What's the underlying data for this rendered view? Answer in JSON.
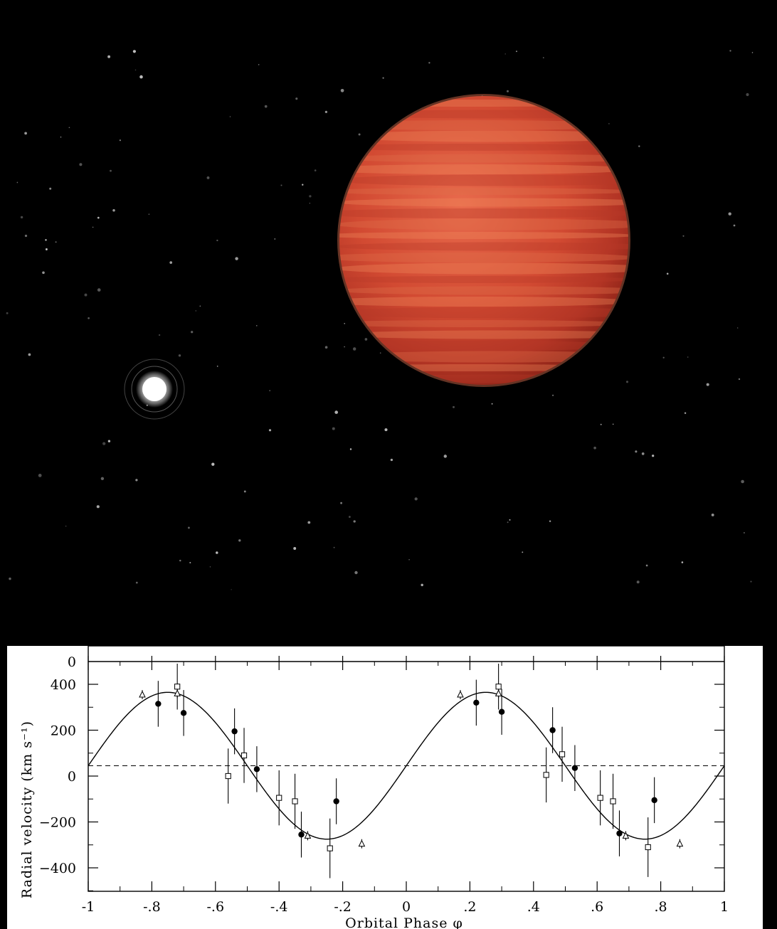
{
  "image": {
    "top_panel": "space-illustration",
    "icons": {
      "planet": "red-brown-dwarf-sphere-icon",
      "star": "white-star-icon"
    },
    "colors": {
      "background": "#000000",
      "planet": "#c8402c",
      "star": "#ffffff",
      "chart_background": "#ffffff",
      "chart_ink": "#000000"
    }
  },
  "chart_data": {
    "type": "scatter",
    "xlabel": "Orbital Phase φ",
    "ylabel": "Radial velocity (km s⁻¹)",
    "xlim": [
      -1,
      1
    ],
    "ylim": [
      -500,
      500
    ],
    "x_ticks": [
      "-1",
      "-.8",
      "-.6",
      "-.4",
      "-.2",
      "0",
      ".2",
      ".4",
      ".6",
      ".8",
      "1"
    ],
    "x_tick_values": [
      -1,
      -0.8,
      -0.6,
      -0.4,
      -0.2,
      0,
      0.2,
      0.4,
      0.6,
      0.8,
      1
    ],
    "y_ticks": [
      "−400",
      "−200",
      "0",
      "200",
      "400"
    ],
    "y_tick_values": [
      -400,
      -200,
      0,
      200,
      400
    ],
    "top_panel_tick": "0",
    "systemic_velocity": 45,
    "fit": {
      "gamma": 45,
      "K": 320,
      "form": "gamma + K*sin(2*pi*phase)"
    },
    "series": [
      {
        "marker": "filled-circle",
        "x": [
          -0.78,
          -0.7,
          -0.54,
          -0.47,
          -0.33,
          -0.22,
          0.22,
          0.3,
          0.46,
          0.53,
          0.67,
          0.78
        ],
        "y": [
          315,
          275,
          195,
          30,
          -255,
          -110,
          320,
          280,
          200,
          35,
          -250,
          -105
        ],
        "yerr": [
          100,
          100,
          100,
          100,
          100,
          100,
          100,
          100,
          100,
          100,
          100,
          100
        ]
      },
      {
        "marker": "open-square",
        "x": [
          -0.72,
          -0.56,
          -0.51,
          -0.4,
          -0.35,
          -0.24,
          0.29,
          0.44,
          0.49,
          0.61,
          0.65,
          0.76
        ],
        "y": [
          390,
          0,
          90,
          -95,
          -110,
          -315,
          390,
          5,
          95,
          -95,
          -110,
          -310
        ],
        "yerr": [
          100,
          120,
          120,
          120,
          120,
          130,
          100,
          120,
          120,
          120,
          120,
          130
        ]
      },
      {
        "marker": "open-triangle",
        "x": [
          -0.83,
          -0.72,
          -0.31,
          -0.14,
          0.17,
          0.29,
          0.69,
          0.86
        ],
        "y": [
          355,
          360,
          -260,
          -295,
          355,
          360,
          -260,
          -295
        ],
        "yerr": [
          20,
          20,
          20,
          20,
          20,
          20,
          20,
          20
        ]
      }
    ]
  }
}
